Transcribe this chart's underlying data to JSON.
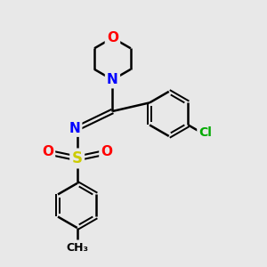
{
  "background_color": "#e8e8e8",
  "bond_color": "#000000",
  "atom_colors": {
    "N": "#0000ff",
    "O": "#ff0000",
    "S": "#cccc00",
    "Cl": "#00aa00",
    "C": "#000000"
  },
  "figsize": [
    3.0,
    3.0
  ],
  "dpi": 100,
  "xlim": [
    0,
    10
  ],
  "ylim": [
    0,
    10
  ]
}
